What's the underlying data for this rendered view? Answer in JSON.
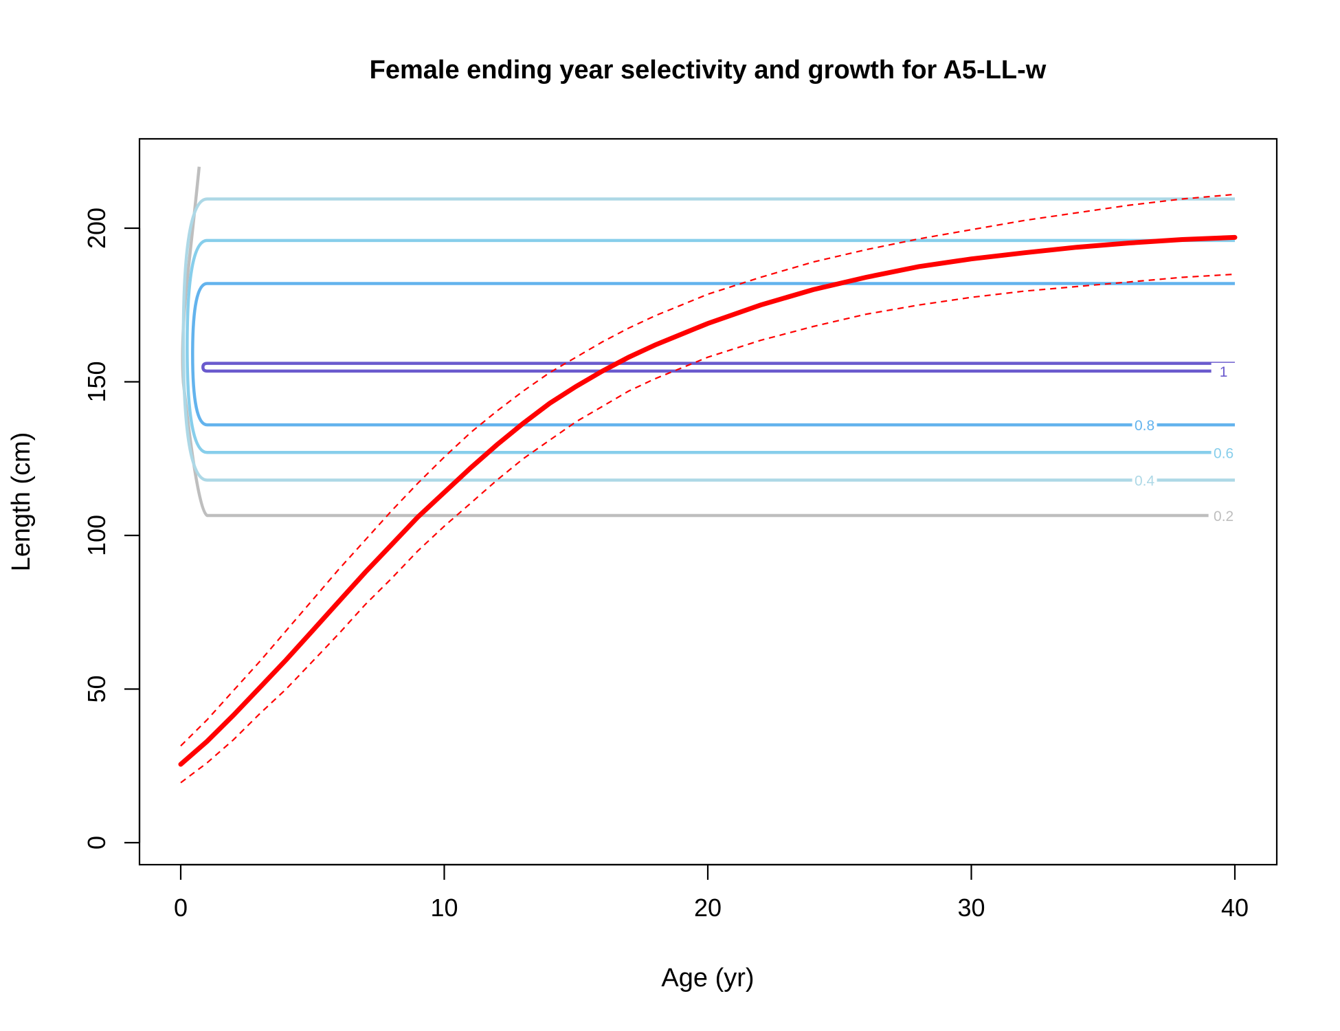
{
  "chart_data": {
    "type": "line",
    "title": "Female ending year selectivity and growth for A5-LL-w",
    "xlabel": "Age (yr)",
    "ylabel": "Length (cm)",
    "xlim": [
      0,
      40
    ],
    "ylim": [
      0,
      220
    ],
    "xticks": [
      0,
      10,
      20,
      30,
      40
    ],
    "yticks": [
      0,
      50,
      100,
      150,
      200
    ],
    "grid": false,
    "legend": "none",
    "colors": {
      "growth": "#ff0000",
      "ci": "#ff0000",
      "c02": "#bebebe",
      "c04": "#add8e6",
      "c06": "#87ceeb",
      "c08": "#63b3ed",
      "c1": "#6a5acd"
    },
    "growth": {
      "age": [
        0,
        1,
        2,
        3,
        4,
        5,
        6,
        7,
        8,
        9,
        10,
        11,
        12,
        13,
        14,
        15,
        16,
        17,
        18,
        19,
        20,
        22,
        24,
        26,
        28,
        30,
        32,
        34,
        36,
        38,
        40
      ],
      "mean": [
        25.5,
        33,
        41.5,
        50.5,
        59.5,
        69,
        78.5,
        88,
        97,
        106,
        114,
        122,
        129.5,
        136.5,
        143,
        148.5,
        153.5,
        158,
        162,
        165.5,
        169,
        175,
        180,
        184,
        187.5,
        190,
        192,
        193.8,
        195.2,
        196.3,
        197
      ],
      "upper": [
        31.5,
        40,
        49.5,
        59,
        69,
        79,
        89,
        98.5,
        108,
        117,
        125.5,
        133.5,
        140.5,
        147,
        153,
        158,
        163,
        167.5,
        171.5,
        175,
        178.5,
        184,
        189,
        193,
        196.5,
        199.5,
        202.5,
        205,
        207.5,
        209.5,
        211
      ],
      "lower": [
        19.5,
        26,
        33.5,
        42,
        50,
        59,
        68,
        77.5,
        86,
        95,
        103,
        110.5,
        118,
        125,
        131,
        137,
        142,
        147,
        151,
        154.5,
        158,
        163.5,
        168,
        172,
        175,
        177.5,
        179.5,
        181,
        182.5,
        184,
        185
      ]
    },
    "selectivity_contours": [
      {
        "label": "0.2",
        "lower": 106.5,
        "upper": 220,
        "label_x": 39,
        "color": "#bebebe"
      },
      {
        "label": "0.4",
        "lower": 118,
        "upper": 209.5,
        "label_x": 36,
        "color": "#add8e6"
      },
      {
        "label": "0.6",
        "lower": 127,
        "upper": 196,
        "label_x": 39,
        "color": "#87ceeb"
      },
      {
        "label": "0.8",
        "lower": 136,
        "upper": 182,
        "label_x": 36,
        "color": "#63b3ed"
      },
      {
        "label": "1",
        "lower": 153.5,
        "upper": 156,
        "label_x": 39,
        "color": "#6a5acd"
      }
    ]
  }
}
